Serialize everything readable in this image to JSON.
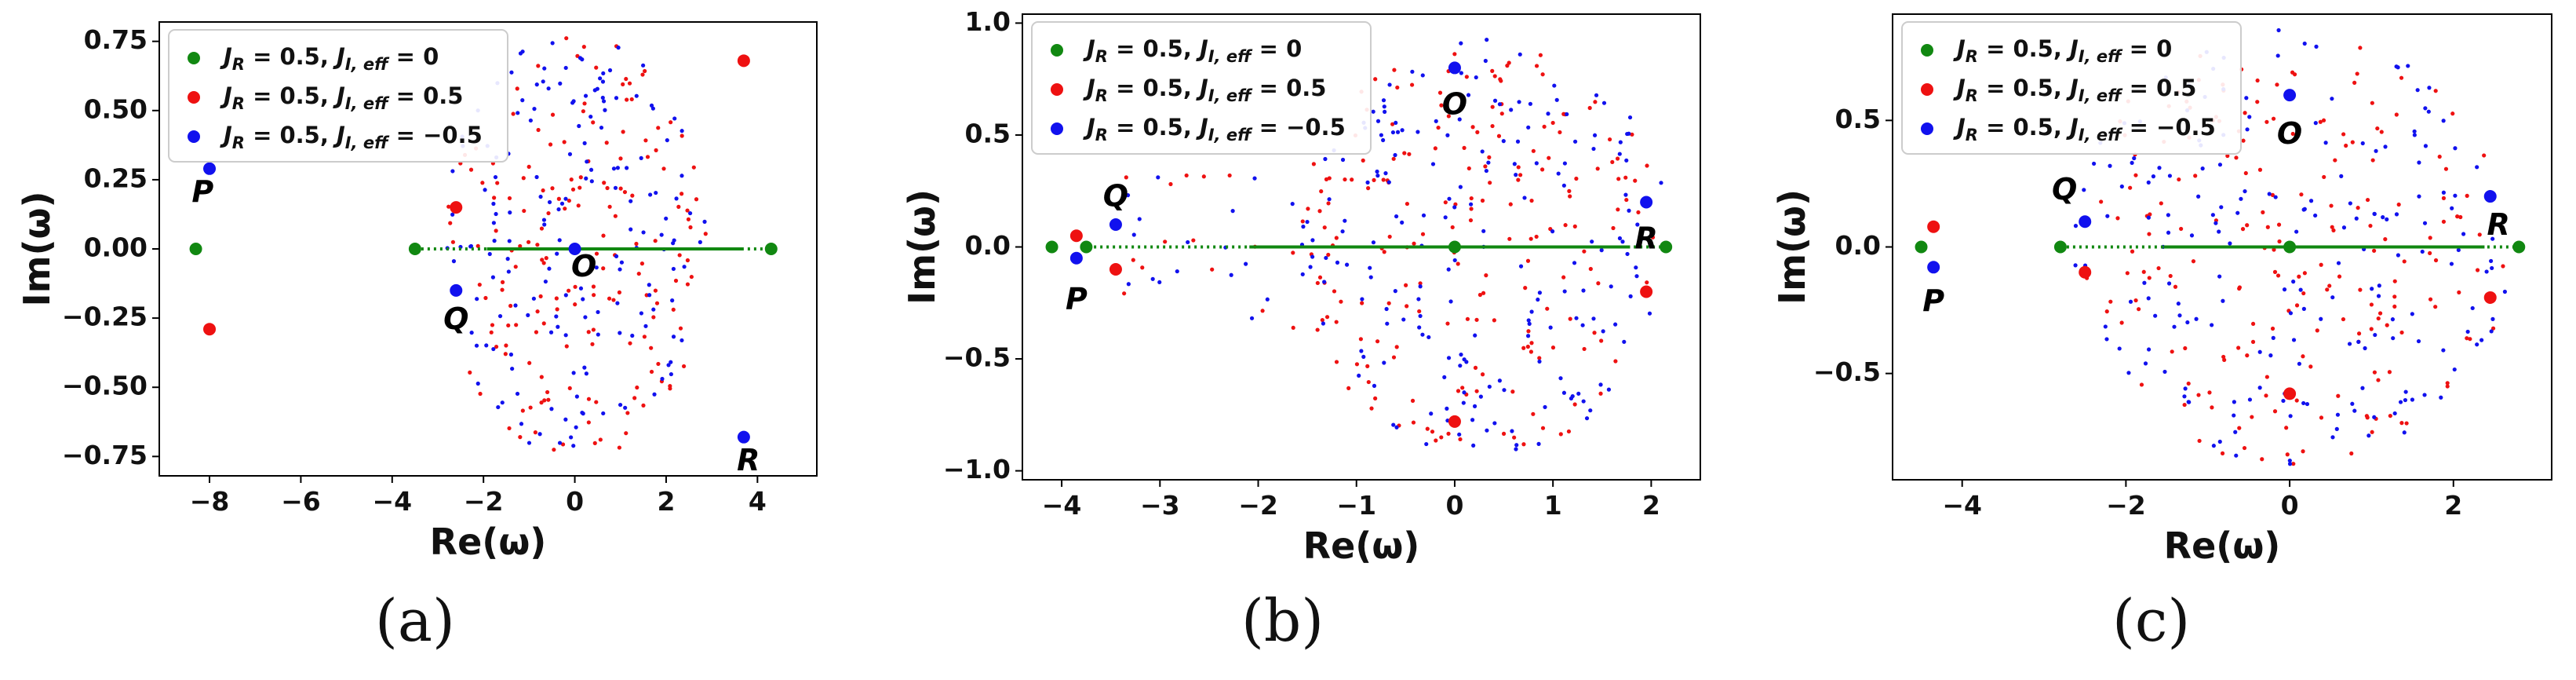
{
  "colors": {
    "green": "#118811",
    "red": "#ee1111",
    "blue": "#1111ee",
    "axis": "#000000"
  },
  "legend_labels": [
    "J_R = 0.5, J_{I,eff} = 0",
    "J_R = 0.5, J_{I,eff} = 0.5",
    "J_R = 0.5, J_{I,eff} = −0.5"
  ],
  "chart_data": [
    {
      "type": "scatter",
      "panel": "a",
      "caption": "(a)",
      "xlabel": "Re(ω)",
      "ylabel": "Im(ω)",
      "xlim": [
        -9.1,
        5.3
      ],
      "ylim": [
        -0.82,
        0.82
      ],
      "xticks": [
        -8,
        -6,
        -4,
        -2,
        0,
        2,
        4
      ],
      "yticks": [
        -0.75,
        -0.5,
        -0.25,
        0.0,
        0.25,
        0.5,
        0.75
      ],
      "tick_format": 2,
      "legend_position": "upper-left",
      "cloud": {
        "cx": 0.0,
        "cy": 0.0,
        "rx": 2.9,
        "ry": 0.78,
        "n_red": 170,
        "n_blue": 170,
        "seed": 11
      },
      "green_line": [
        -3.5,
        4.3
      ],
      "series": [
        {
          "name": "J_R = 0.5, J_{I,eff} = 0",
          "color": "green",
          "points": [
            [
              -8.3,
              0.0
            ],
            [
              -3.5,
              0.0
            ],
            [
              4.3,
              0.0
            ]
          ]
        },
        {
          "name": "J_R = 0.5, J_{I,eff} = 0.5",
          "color": "red",
          "points": [
            [
              -8.0,
              -0.29
            ],
            [
              -2.6,
              0.15
            ],
            [
              3.7,
              0.68
            ]
          ]
        },
        {
          "name": "J_R = 0.5, J_{I,eff} = −0.5",
          "color": "blue",
          "points": [
            [
              -8.0,
              0.29
            ],
            [
              -2.6,
              -0.15
            ],
            [
              3.7,
              -0.68
            ],
            [
              0.0,
              0.0
            ]
          ]
        }
      ],
      "annotations": [
        {
          "text": "P",
          "x": -8.15,
          "y": 0.2
        },
        {
          "text": "Q",
          "x": -2.6,
          "y": -0.26
        },
        {
          "text": "O",
          "x": 0.2,
          "y": -0.07
        },
        {
          "text": "R",
          "x": 3.8,
          "y": -0.77
        }
      ]
    },
    {
      "type": "scatter",
      "panel": "b",
      "caption": "(b)",
      "xlabel": "Re(ω)",
      "ylabel": "Im(ω)",
      "xlim": [
        -4.4,
        2.5
      ],
      "ylim": [
        -1.04,
        1.04
      ],
      "xticks": [
        -4,
        -3,
        -2,
        -1,
        0,
        1,
        2
      ],
      "yticks": [
        -1.0,
        -0.5,
        0.0,
        0.5,
        1.0
      ],
      "tick_format": 1,
      "legend_position": "upper-left",
      "cloud": {
        "cx": 0.3,
        "cy": 0.0,
        "rx": 1.9,
        "ry": 0.93,
        "n_red": 190,
        "n_blue": 190,
        "seed": 23
      },
      "tail": {
        "x0": -3.6,
        "x1": -1.2,
        "ry": 0.45,
        "n": 40,
        "seed": 31
      },
      "green_line": [
        -3.8,
        2.1
      ],
      "series": [
        {
          "name": "J_R = 0.5, J_{I,eff} = 0",
          "color": "green",
          "points": [
            [
              -4.1,
              0.0
            ],
            [
              -3.75,
              0.0
            ],
            [
              0.0,
              0.0
            ],
            [
              2.15,
              0.0
            ]
          ]
        },
        {
          "name": "J_R = 0.5, J_{I,eff} = 0.5",
          "color": "red",
          "points": [
            [
              -3.85,
              0.05
            ],
            [
              -3.45,
              -0.1
            ],
            [
              0.0,
              -0.78
            ],
            [
              1.95,
              -0.2
            ]
          ]
        },
        {
          "name": "J_R = 0.5, J_{I,eff} = −0.5",
          "color": "blue",
          "points": [
            [
              -3.85,
              -0.05
            ],
            [
              -3.45,
              0.1
            ],
            [
              0.0,
              0.8
            ],
            [
              1.95,
              0.2
            ]
          ]
        }
      ],
      "annotations": [
        {
          "text": "P",
          "x": -3.85,
          "y": -0.24
        },
        {
          "text": "Q",
          "x": -3.45,
          "y": 0.22
        },
        {
          "text": "O",
          "x": 0.0,
          "y": 0.63
        },
        {
          "text": "R",
          "x": 1.95,
          "y": 0.03
        }
      ]
    },
    {
      "type": "scatter",
      "panel": "c",
      "caption": "(c)",
      "xlabel": "Re(ω)",
      "ylabel": "Im(ω)",
      "xlim": [
        -4.85,
        3.2
      ],
      "ylim": [
        -0.92,
        0.92
      ],
      "xticks": [
        -4,
        -2,
        0,
        2
      ],
      "yticks": [
        -0.5,
        0.0,
        0.5
      ],
      "tick_format": 1,
      "legend_position": "upper-left",
      "cloud": {
        "cx": 0.0,
        "cy": 0.0,
        "rx": 2.7,
        "ry": 0.86,
        "n_red": 190,
        "n_blue": 190,
        "seed": 47
      },
      "green_line": [
        -2.8,
        2.8
      ],
      "series": [
        {
          "name": "J_R = 0.5, J_{I,eff} = 0",
          "color": "green",
          "points": [
            [
              -4.5,
              0.0
            ],
            [
              -2.8,
              0.0
            ],
            [
              0.0,
              0.0
            ],
            [
              2.8,
              0.0
            ]
          ]
        },
        {
          "name": "J_R = 0.5, J_{I,eff} = 0.5",
          "color": "red",
          "points": [
            [
              -4.35,
              0.08
            ],
            [
              -2.5,
              -0.1
            ],
            [
              0.0,
              -0.58
            ],
            [
              2.45,
              -0.2
            ]
          ]
        },
        {
          "name": "J_R = 0.5, J_{I,eff} = −0.5",
          "color": "blue",
          "points": [
            [
              -4.35,
              -0.08
            ],
            [
              -2.5,
              0.1
            ],
            [
              0.0,
              0.6
            ],
            [
              2.45,
              0.2
            ]
          ]
        }
      ],
      "annotations": [
        {
          "text": "P",
          "x": -4.35,
          "y": -0.22
        },
        {
          "text": "Q",
          "x": -2.75,
          "y": 0.22
        },
        {
          "text": "O",
          "x": 0.0,
          "y": 0.44
        },
        {
          "text": "R",
          "x": 2.55,
          "y": 0.08
        }
      ]
    }
  ]
}
